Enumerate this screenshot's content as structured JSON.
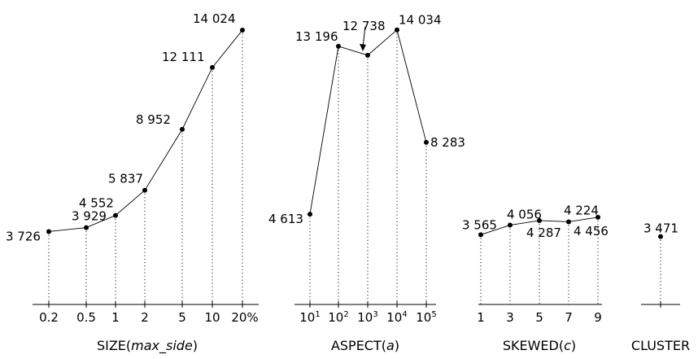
{
  "chart_data": [
    {
      "type": "line",
      "xlabel_main": "SIZE(",
      "xlabel_var": "max_side",
      "xlabel_end": ")",
      "categories": [
        "0.2",
        "0.5",
        "1",
        "2",
        "5",
        "10",
        "20%"
      ],
      "values": [
        3726,
        3929,
        4552,
        5837,
        8952,
        12111,
        14024
      ],
      "value_labels": [
        "3 726",
        "3 929",
        "4 552",
        "5 837",
        "8 952",
        "12 111",
        "14 024"
      ]
    },
    {
      "type": "line",
      "xlabel_main": "ASPECT(",
      "xlabel_var": "a",
      "xlabel_end": ")",
      "tick_base": "10",
      "tick_exponents": [
        "1",
        "2",
        "3",
        "4",
        "5"
      ],
      "values": [
        4613,
        13196,
        12738,
        14034,
        8283
      ],
      "value_labels": [
        "4 613",
        "13 196",
        "12 738",
        "14 034",
        "8 283"
      ]
    },
    {
      "type": "line",
      "xlabel_main": "SKEWED(",
      "xlabel_var": "c",
      "xlabel_end": ")",
      "categories": [
        "1",
        "3",
        "5",
        "7",
        "9"
      ],
      "values": [
        3565,
        4056,
        4287,
        4224,
        4456
      ],
      "value_labels": [
        "3 565",
        "4 056",
        "4 287",
        "4 224",
        "4 456"
      ]
    },
    {
      "type": "scatter",
      "xlabel_main": "CLUSTER",
      "xlabel_var": "",
      "xlabel_end": "",
      "categories": [
        ""
      ],
      "values": [
        3471
      ],
      "value_labels": [
        "3 471"
      ]
    }
  ],
  "y_range": [
    0,
    15000
  ],
  "grid": false
}
